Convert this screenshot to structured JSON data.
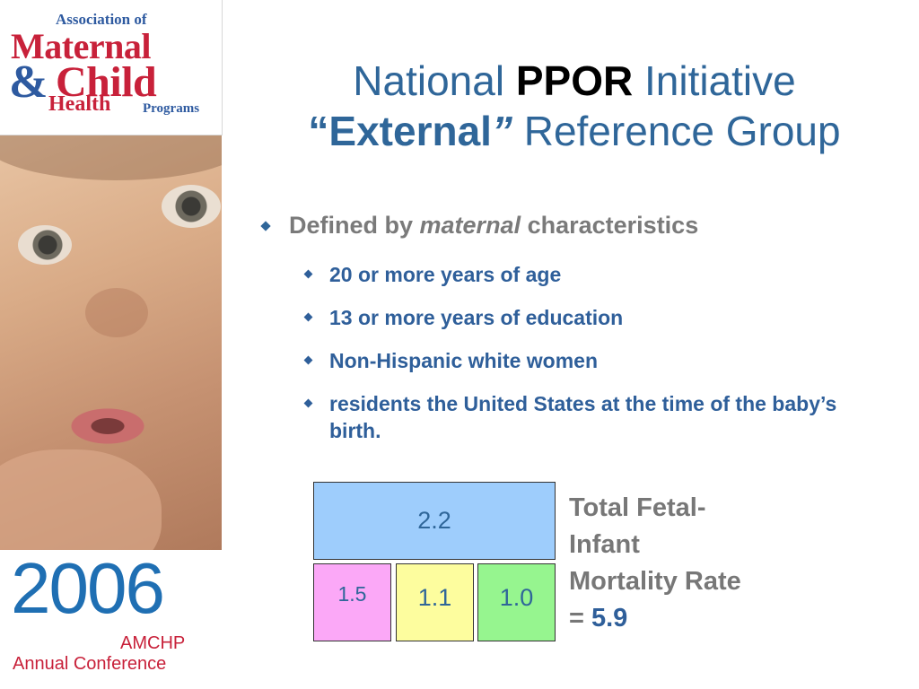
{
  "logo": {
    "line1": "Association of",
    "line2": "Maternal",
    "amp": "&",
    "line3": "Child",
    "line4": "Health",
    "line5": "Programs"
  },
  "conference": {
    "year": "2006",
    "org": "AMCHP",
    "event": "Annual Conference"
  },
  "title": {
    "line1_a": "National ",
    "line1_b": "PPOR",
    "line1_c": " Initiative",
    "line2_open": "“",
    "line2_bold": "External",
    "line2_close": "”",
    "line2_rest": " Reference Group"
  },
  "bullets": {
    "main_a": "Defined by ",
    "main_b": "maternal",
    "main_c": " characteristics",
    "items": [
      "20 or more years of age",
      "13 or more years of education",
      "Non-Hispanic white women",
      "residents the United States at the time of the baby’s birth."
    ]
  },
  "diagram": {
    "top_value": "2.2",
    "bottom_values": [
      "1.5",
      "1.1",
      "1.0"
    ],
    "colors": {
      "top": "#9ecdfc",
      "a": "#fba8f7",
      "b": "#fdfd9e",
      "c": "#96f58f"
    },
    "total_label": "Total Fetal-Infant Mortality Rate = ",
    "total_value": "5.9"
  },
  "accent_colors": {
    "title_blue": "#2f6699",
    "logo_red": "#c8213a",
    "year_blue": "#1f6fb3"
  }
}
